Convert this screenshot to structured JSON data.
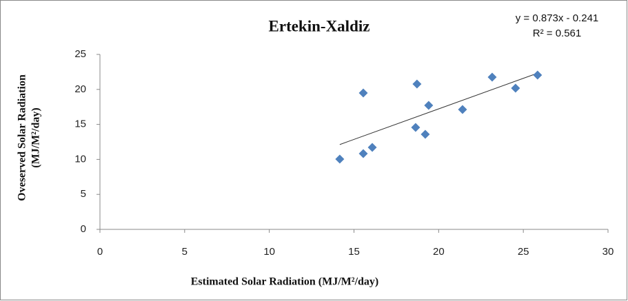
{
  "chart_data": {
    "type": "scatter",
    "title": "Ertekin-Xaldiz",
    "xlabel": "Estimated Solar Radiation (MJ/M²/day)",
    "ylabel": [
      "Oveserved Solar Radiation",
      "(MJ/M²/day)"
    ],
    "x": [
      14.16,
      15.55,
      16.08,
      15.55,
      18.64,
      18.72,
      19.21,
      19.41,
      21.41,
      23.16,
      24.54,
      25.84
    ],
    "values": [
      10.04,
      10.83,
      11.71,
      19.49,
      14.57,
      20.77,
      13.58,
      17.72,
      17.13,
      21.75,
      20.18,
      22.05
    ],
    "color": "#4f81bd",
    "trendline": {
      "slope": 0.873,
      "intercept": -0.241,
      "label": [
        "y = 0.873x - 0.241",
        "R² = 0.561"
      ]
    },
    "xlim": [
      0,
      30
    ],
    "xticks": [
      0,
      5,
      10,
      15,
      20,
      25,
      30
    ],
    "ylim": [
      0,
      25
    ],
    "yticks": [
      0,
      5,
      10,
      15,
      20,
      25
    ],
    "grid": false
  }
}
